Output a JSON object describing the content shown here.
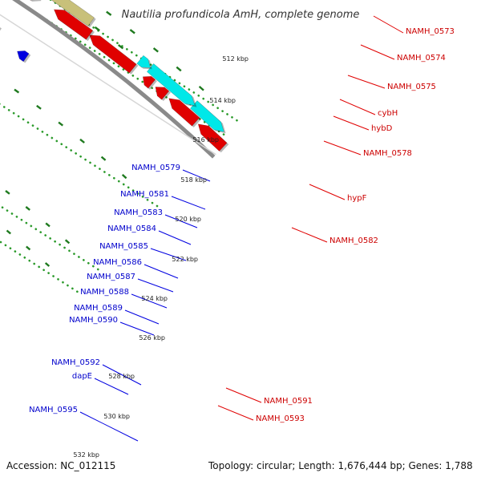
{
  "title": "Nautilia profundicola AmH, complete genome",
  "accession": "Accession: NC_012115",
  "topology": "Topology: circular; Length: 1,676,444 bp; Genes: 1,788",
  "colors": {
    "background": "#ffffff",
    "backbone": "#8a8a8a",
    "plus_strand": "#e00000",
    "minus_strand": "#0000e0",
    "plus_label": "#cc0000",
    "minus_label": "#0000cc",
    "tick_dots": "#2a9a2a",
    "tick_marks": "#1f7a1f",
    "gene_cyan": "#00e8e8",
    "gene_olive": "#c8c07a",
    "gene_green": "#2aa84a",
    "gene_steelblue": "#4a86c0",
    "gene_navy": "#00007a"
  },
  "ticks": [
    "512 kbp",
    "514 kbp",
    "516 kbp",
    "518 kbp",
    "520 kbp",
    "522 kbp",
    "524 kbp",
    "526 kbp",
    "528 kbp",
    "530 kbp",
    "532 kbp"
  ],
  "right_labels": [
    "NAMH_0573",
    "NAMH_0574",
    "NAMH_0575",
    "cybH",
    "hybD",
    "NAMH_0578",
    "hypF",
    "NAMH_0582",
    "NAMH_0591",
    "NAMH_0593"
  ],
  "left_labels": [
    "NAMH_0579",
    "NAMH_0581",
    "NAMH_0583",
    "NAMH_0584",
    "NAMH_0585",
    "NAMH_0586",
    "NAMH_0587",
    "NAMH_0588",
    "NAMH_0589",
    "NAMH_0590",
    "NAMH_0592",
    "dapE",
    "NAMH_0595"
  ]
}
